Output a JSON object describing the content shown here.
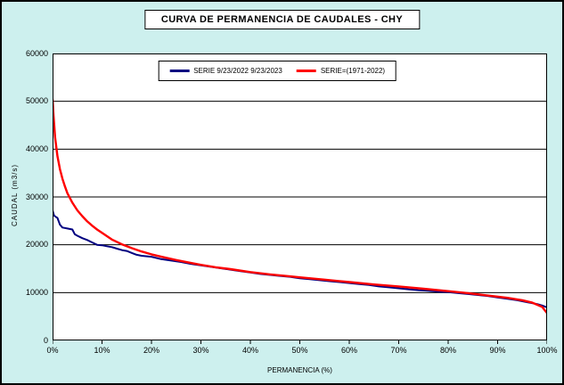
{
  "window": {
    "background": "#cdf0ee",
    "plot_background": "#ffffff",
    "border_color": "#000000"
  },
  "chart_data": {
    "type": "line",
    "title": "CURVA DE PERMANENCIA DE CAUDALES - CHY",
    "xlabel": "PERMANENCIA (%)",
    "ylabel": "CAUDAL (m3/s)",
    "xlim": [
      0,
      100
    ],
    "ylim": [
      0,
      60000
    ],
    "x_ticks": [
      "0%",
      "10%",
      "20%",
      "30%",
      "40%",
      "50%",
      "60%",
      "70%",
      "80%",
      "90%",
      "100%"
    ],
    "x_tick_values": [
      0,
      10,
      20,
      30,
      40,
      50,
      60,
      70,
      80,
      90,
      100
    ],
    "y_ticks": [
      "0",
      "10000",
      "20000",
      "30000",
      "40000",
      "50000",
      "60000"
    ],
    "y_tick_values": [
      0,
      10000,
      20000,
      30000,
      40000,
      50000,
      60000
    ],
    "grid": "horizontal",
    "legend_position": "top-center-inside",
    "series": [
      {
        "name": "SERIE 9/23/2022 9/23/2023",
        "color": "#000080",
        "x": [
          0,
          0.3,
          0.7,
          1,
          1.5,
          2,
          3,
          4,
          4.5,
          5,
          6,
          7,
          8,
          9,
          10,
          11,
          12,
          13,
          14,
          15,
          16,
          17,
          18,
          20,
          22,
          24,
          26,
          28,
          30,
          32,
          34,
          36,
          38,
          40,
          42,
          44,
          46,
          48,
          50,
          52,
          54,
          56,
          58,
          60,
          62,
          64,
          66,
          68,
          70,
          72,
          74,
          76,
          78,
          80,
          82,
          84,
          86,
          88,
          90,
          92,
          94,
          96,
          98,
          99,
          100
        ],
        "y": [
          27200,
          26100,
          25800,
          25600,
          24200,
          23600,
          23400,
          23200,
          22200,
          21900,
          21400,
          21000,
          20500,
          20000,
          19900,
          19700,
          19500,
          19200,
          18900,
          18700,
          18300,
          17900,
          17700,
          17500,
          17000,
          16700,
          16400,
          16000,
          15700,
          15400,
          15100,
          14800,
          14500,
          14200,
          13900,
          13700,
          13500,
          13300,
          13000,
          12800,
          12600,
          12400,
          12200,
          12000,
          11800,
          11600,
          11300,
          11100,
          10900,
          10700,
          10500,
          10400,
          10200,
          10100,
          9900,
          9700,
          9500,
          9300,
          9000,
          8700,
          8400,
          8000,
          7600,
          7300,
          6900
        ]
      },
      {
        "name": "SERIE=(1971-2022)",
        "color": "#ff0000",
        "x": [
          0,
          0.2,
          0.5,
          1,
          1.5,
          2,
          2.5,
          3,
          4,
          5,
          6,
          7,
          8,
          9,
          10,
          12,
          14,
          16,
          18,
          20,
          22,
          25,
          28,
          30,
          33,
          36,
          40,
          44,
          48,
          50,
          55,
          60,
          65,
          70,
          75,
          80,
          84,
          88,
          92,
          95,
          97,
          99,
          100
        ],
        "y": [
          50500,
          47000,
          42500,
          38500,
          35800,
          33800,
          32200,
          30800,
          28800,
          27200,
          26000,
          24900,
          24000,
          23200,
          22500,
          21100,
          20100,
          19300,
          18600,
          18000,
          17500,
          16800,
          16200,
          15800,
          15300,
          14900,
          14300,
          13800,
          13400,
          13200,
          12700,
          12200,
          11700,
          11300,
          10800,
          10300,
          9900,
          9400,
          8900,
          8400,
          7900,
          7000,
          5700
        ]
      }
    ]
  }
}
